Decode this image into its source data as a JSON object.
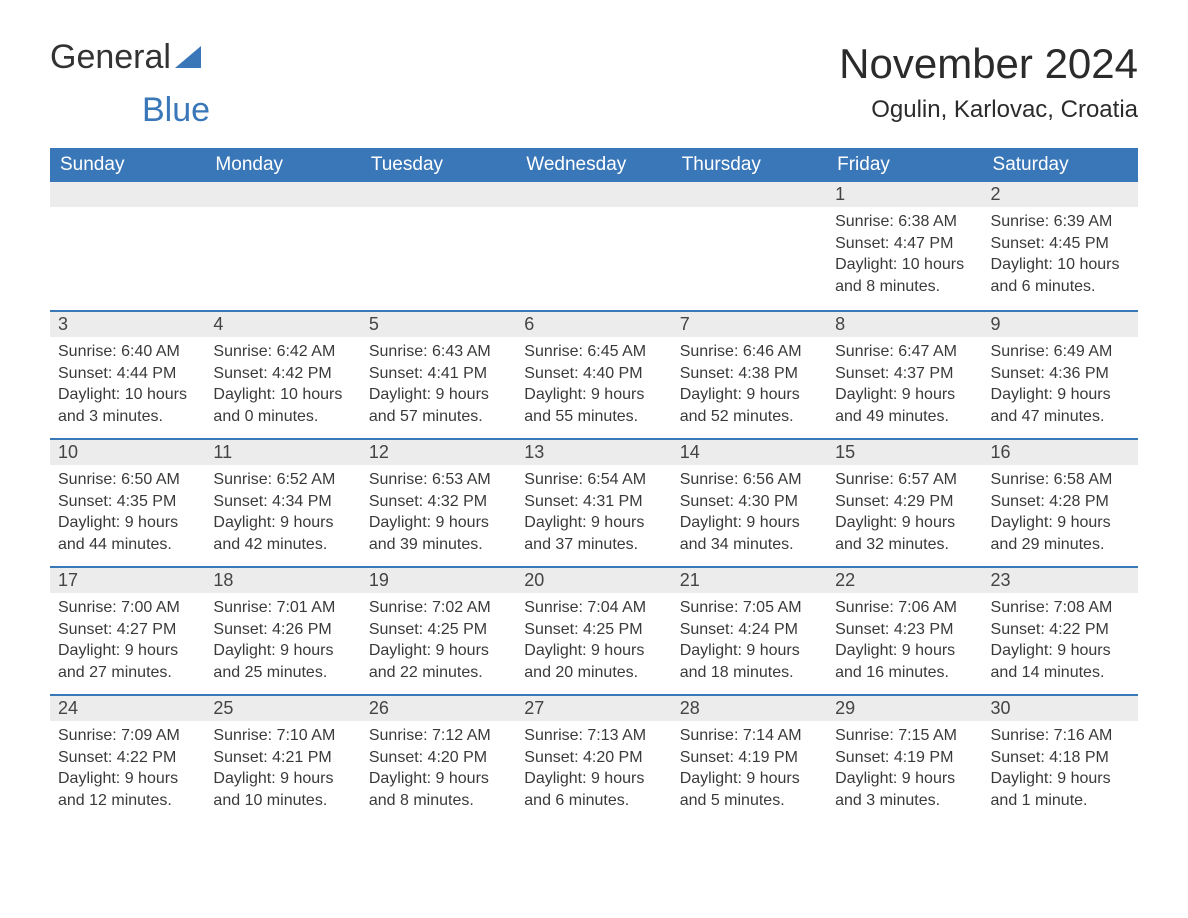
{
  "brand": {
    "part1": "General",
    "part2": "Blue"
  },
  "title": "November 2024",
  "location": "Ogulin, Karlovac, Croatia",
  "colors": {
    "accent": "#3a77b8",
    "header_text": "#ffffff",
    "daynum_bg": "#ececec",
    "body_text": "#3a3a3a",
    "page_bg": "#ffffff"
  },
  "weekdays": [
    "Sunday",
    "Monday",
    "Tuesday",
    "Wednesday",
    "Thursday",
    "Friday",
    "Saturday"
  ],
  "weeks": [
    [
      null,
      null,
      null,
      null,
      null,
      {
        "n": "1",
        "sunrise": "Sunrise: 6:38 AM",
        "sunset": "Sunset: 4:47 PM",
        "daylight": "Daylight: 10 hours and 8 minutes."
      },
      {
        "n": "2",
        "sunrise": "Sunrise: 6:39 AM",
        "sunset": "Sunset: 4:45 PM",
        "daylight": "Daylight: 10 hours and 6 minutes."
      }
    ],
    [
      {
        "n": "3",
        "sunrise": "Sunrise: 6:40 AM",
        "sunset": "Sunset: 4:44 PM",
        "daylight": "Daylight: 10 hours and 3 minutes."
      },
      {
        "n": "4",
        "sunrise": "Sunrise: 6:42 AM",
        "sunset": "Sunset: 4:42 PM",
        "daylight": "Daylight: 10 hours and 0 minutes."
      },
      {
        "n": "5",
        "sunrise": "Sunrise: 6:43 AM",
        "sunset": "Sunset: 4:41 PM",
        "daylight": "Daylight: 9 hours and 57 minutes."
      },
      {
        "n": "6",
        "sunrise": "Sunrise: 6:45 AM",
        "sunset": "Sunset: 4:40 PM",
        "daylight": "Daylight: 9 hours and 55 minutes."
      },
      {
        "n": "7",
        "sunrise": "Sunrise: 6:46 AM",
        "sunset": "Sunset: 4:38 PM",
        "daylight": "Daylight: 9 hours and 52 minutes."
      },
      {
        "n": "8",
        "sunrise": "Sunrise: 6:47 AM",
        "sunset": "Sunset: 4:37 PM",
        "daylight": "Daylight: 9 hours and 49 minutes."
      },
      {
        "n": "9",
        "sunrise": "Sunrise: 6:49 AM",
        "sunset": "Sunset: 4:36 PM",
        "daylight": "Daylight: 9 hours and 47 minutes."
      }
    ],
    [
      {
        "n": "10",
        "sunrise": "Sunrise: 6:50 AM",
        "sunset": "Sunset: 4:35 PM",
        "daylight": "Daylight: 9 hours and 44 minutes."
      },
      {
        "n": "11",
        "sunrise": "Sunrise: 6:52 AM",
        "sunset": "Sunset: 4:34 PM",
        "daylight": "Daylight: 9 hours and 42 minutes."
      },
      {
        "n": "12",
        "sunrise": "Sunrise: 6:53 AM",
        "sunset": "Sunset: 4:32 PM",
        "daylight": "Daylight: 9 hours and 39 minutes."
      },
      {
        "n": "13",
        "sunrise": "Sunrise: 6:54 AM",
        "sunset": "Sunset: 4:31 PM",
        "daylight": "Daylight: 9 hours and 37 minutes."
      },
      {
        "n": "14",
        "sunrise": "Sunrise: 6:56 AM",
        "sunset": "Sunset: 4:30 PM",
        "daylight": "Daylight: 9 hours and 34 minutes."
      },
      {
        "n": "15",
        "sunrise": "Sunrise: 6:57 AM",
        "sunset": "Sunset: 4:29 PM",
        "daylight": "Daylight: 9 hours and 32 minutes."
      },
      {
        "n": "16",
        "sunrise": "Sunrise: 6:58 AM",
        "sunset": "Sunset: 4:28 PM",
        "daylight": "Daylight: 9 hours and 29 minutes."
      }
    ],
    [
      {
        "n": "17",
        "sunrise": "Sunrise: 7:00 AM",
        "sunset": "Sunset: 4:27 PM",
        "daylight": "Daylight: 9 hours and 27 minutes."
      },
      {
        "n": "18",
        "sunrise": "Sunrise: 7:01 AM",
        "sunset": "Sunset: 4:26 PM",
        "daylight": "Daylight: 9 hours and 25 minutes."
      },
      {
        "n": "19",
        "sunrise": "Sunrise: 7:02 AM",
        "sunset": "Sunset: 4:25 PM",
        "daylight": "Daylight: 9 hours and 22 minutes."
      },
      {
        "n": "20",
        "sunrise": "Sunrise: 7:04 AM",
        "sunset": "Sunset: 4:25 PM",
        "daylight": "Daylight: 9 hours and 20 minutes."
      },
      {
        "n": "21",
        "sunrise": "Sunrise: 7:05 AM",
        "sunset": "Sunset: 4:24 PM",
        "daylight": "Daylight: 9 hours and 18 minutes."
      },
      {
        "n": "22",
        "sunrise": "Sunrise: 7:06 AM",
        "sunset": "Sunset: 4:23 PM",
        "daylight": "Daylight: 9 hours and 16 minutes."
      },
      {
        "n": "23",
        "sunrise": "Sunrise: 7:08 AM",
        "sunset": "Sunset: 4:22 PM",
        "daylight": "Daylight: 9 hours and 14 minutes."
      }
    ],
    [
      {
        "n": "24",
        "sunrise": "Sunrise: 7:09 AM",
        "sunset": "Sunset: 4:22 PM",
        "daylight": "Daylight: 9 hours and 12 minutes."
      },
      {
        "n": "25",
        "sunrise": "Sunrise: 7:10 AM",
        "sunset": "Sunset: 4:21 PM",
        "daylight": "Daylight: 9 hours and 10 minutes."
      },
      {
        "n": "26",
        "sunrise": "Sunrise: 7:12 AM",
        "sunset": "Sunset: 4:20 PM",
        "daylight": "Daylight: 9 hours and 8 minutes."
      },
      {
        "n": "27",
        "sunrise": "Sunrise: 7:13 AM",
        "sunset": "Sunset: 4:20 PM",
        "daylight": "Daylight: 9 hours and 6 minutes."
      },
      {
        "n": "28",
        "sunrise": "Sunrise: 7:14 AM",
        "sunset": "Sunset: 4:19 PM",
        "daylight": "Daylight: 9 hours and 5 minutes."
      },
      {
        "n": "29",
        "sunrise": "Sunrise: 7:15 AM",
        "sunset": "Sunset: 4:19 PM",
        "daylight": "Daylight: 9 hours and 3 minutes."
      },
      {
        "n": "30",
        "sunrise": "Sunrise: 7:16 AM",
        "sunset": "Sunset: 4:18 PM",
        "daylight": "Daylight: 9 hours and 1 minute."
      }
    ]
  ]
}
